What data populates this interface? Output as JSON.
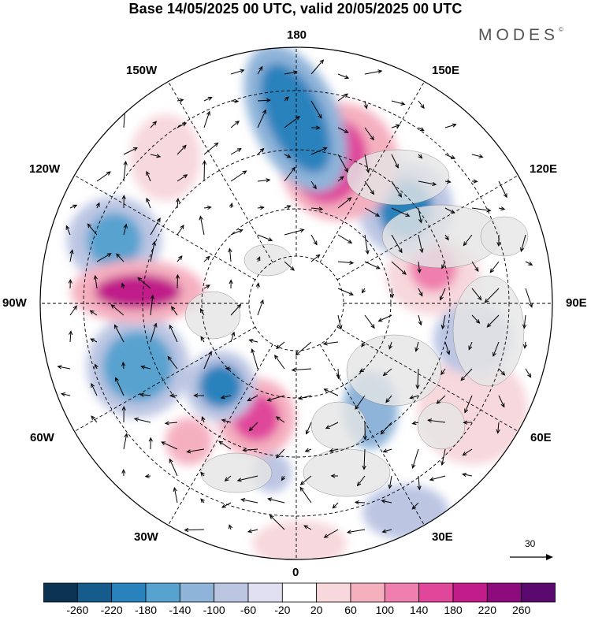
{
  "title": "Base 14/05/2025 00 UTC, valid 20/05/2025 00 UTC",
  "brand": {
    "name": "MODES",
    "mark": "©"
  },
  "longitude_labels": {
    "north": "180",
    "south": "0",
    "east": "90E",
    "west": "90W",
    "l150w": "150W",
    "l120w": "120W",
    "l60w": "60W",
    "l30w": "30W",
    "l150e": "150E",
    "l120e": "120E",
    "l60e": "60E",
    "l30e": "30E"
  },
  "wind_scale": {
    "value": "30"
  },
  "colorbar": {
    "labels": [
      "-260",
      "-220",
      "-180",
      "-140",
      "-100",
      "-60",
      "-20",
      "20",
      "60",
      "100",
      "140",
      "180",
      "220",
      "260"
    ],
    "colors": [
      "#0d3352",
      "#155c8c",
      "#2a82bd",
      "#58a2cf",
      "#8fb4d9",
      "#bcc6e3",
      "#e0e0f0",
      "#ffffff",
      "#f7d8dc",
      "#f5b0c0",
      "#ef7fae",
      "#e0479b",
      "#c01c8a",
      "#8e0b7d",
      "#5a0a6e"
    ]
  },
  "map": {
    "projection": "north-polar-stereographic",
    "graticule": "dashed",
    "field_shading": "anomaly-contours",
    "background_land_color": "#e6e6e6",
    "anomalies": [
      {
        "color": "#2a82bd",
        "label": "negative"
      },
      {
        "color": "#e0479b",
        "label": "positive"
      }
    ]
  }
}
